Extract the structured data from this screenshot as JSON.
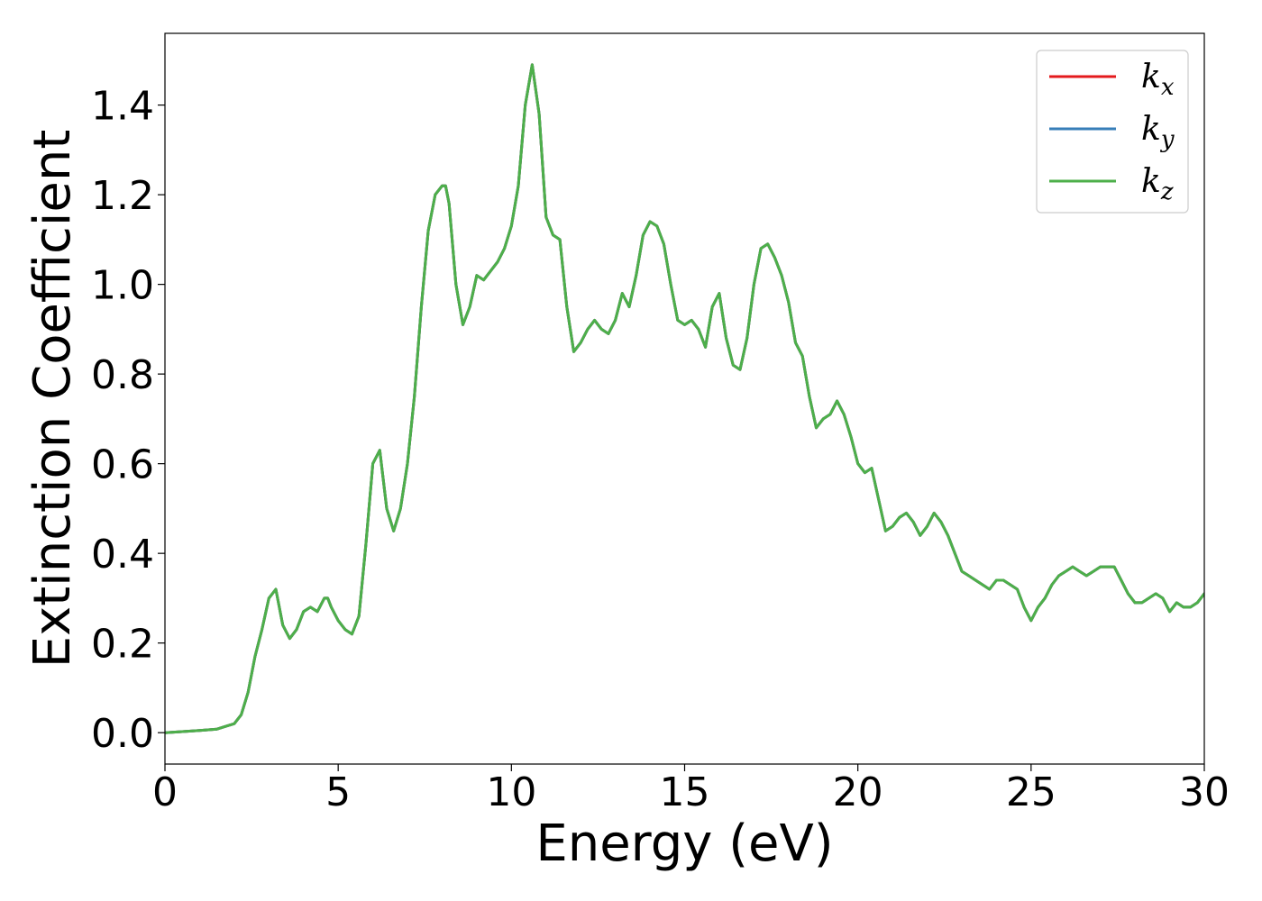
{
  "chart_data": {
    "type": "line",
    "title": "",
    "xlabel": "Energy (eV)",
    "ylabel": "Extinction Coefficient",
    "xlim": [
      0,
      30
    ],
    "ylim": [
      -0.07,
      1.56
    ],
    "xticks": [
      0,
      5,
      10,
      15,
      20,
      25,
      30
    ],
    "yticks": [
      0.0,
      0.2,
      0.4,
      0.6,
      0.8,
      1.0,
      1.2,
      1.4
    ],
    "grid": false,
    "legend_position": "top-right",
    "series": [
      {
        "name": "k_x",
        "label_base": "k",
        "label_sub": "x",
        "color": "#e41a1c",
        "x": [
          0,
          1,
          1.5,
          2,
          2.2,
          2.4,
          2.6,
          2.8,
          3.0,
          3.2,
          3.4,
          3.6,
          3.8,
          4.0,
          4.2,
          4.4,
          4.6,
          4.7,
          4.8,
          5.0,
          5.2,
          5.4,
          5.6,
          5.8,
          6.0,
          6.2,
          6.4,
          6.6,
          6.8,
          7.0,
          7.2,
          7.4,
          7.6,
          7.8,
          8.0,
          8.1,
          8.2,
          8.4,
          8.6,
          8.8,
          9.0,
          9.2,
          9.4,
          9.6,
          9.8,
          10.0,
          10.2,
          10.4,
          10.6,
          10.8,
          11.0,
          11.2,
          11.4,
          11.6,
          11.8,
          12.0,
          12.2,
          12.4,
          12.6,
          12.8,
          13.0,
          13.2,
          13.4,
          13.6,
          13.8,
          14.0,
          14.2,
          14.4,
          14.6,
          14.8,
          15.0,
          15.2,
          15.4,
          15.6,
          15.8,
          16.0,
          16.2,
          16.4,
          16.6,
          16.8,
          17.0,
          17.2,
          17.4,
          17.6,
          17.8,
          18.0,
          18.2,
          18.4,
          18.6,
          18.8,
          19.0,
          19.2,
          19.4,
          19.6,
          19.8,
          20.0,
          20.2,
          20.4,
          20.6,
          20.8,
          21.0,
          21.2,
          21.4,
          21.6,
          21.8,
          22.0,
          22.2,
          22.4,
          22.6,
          22.8,
          23.0,
          23.2,
          23.4,
          23.6,
          23.8,
          24.0,
          24.2,
          24.4,
          24.6,
          24.8,
          25.0,
          25.2,
          25.4,
          25.6,
          25.8,
          26.0,
          26.2,
          26.4,
          26.6,
          26.8,
          27.0,
          27.2,
          27.4,
          27.6,
          27.8,
          28.0,
          28.2,
          28.4,
          28.6,
          28.8,
          29.0,
          29.2,
          29.4,
          29.6,
          29.8,
          30.0
        ],
        "y": [
          0.0,
          0.005,
          0.008,
          0.02,
          0.04,
          0.09,
          0.17,
          0.23,
          0.3,
          0.32,
          0.24,
          0.21,
          0.23,
          0.27,
          0.28,
          0.27,
          0.3,
          0.3,
          0.28,
          0.25,
          0.23,
          0.22,
          0.26,
          0.42,
          0.6,
          0.63,
          0.5,
          0.45,
          0.5,
          0.6,
          0.75,
          0.95,
          1.12,
          1.2,
          1.22,
          1.22,
          1.18,
          1.0,
          0.91,
          0.95,
          1.02,
          1.01,
          1.03,
          1.05,
          1.08,
          1.13,
          1.22,
          1.4,
          1.49,
          1.38,
          1.15,
          1.11,
          1.1,
          0.95,
          0.85,
          0.87,
          0.9,
          0.92,
          0.9,
          0.89,
          0.92,
          0.98,
          0.95,
          1.02,
          1.11,
          1.14,
          1.13,
          1.09,
          1.0,
          0.92,
          0.91,
          0.92,
          0.9,
          0.86,
          0.95,
          0.98,
          0.88,
          0.82,
          0.81,
          0.88,
          1.0,
          1.08,
          1.09,
          1.06,
          1.02,
          0.96,
          0.87,
          0.84,
          0.75,
          0.68,
          0.7,
          0.71,
          0.74,
          0.71,
          0.66,
          0.6,
          0.58,
          0.59,
          0.52,
          0.45,
          0.46,
          0.48,
          0.49,
          0.47,
          0.44,
          0.46,
          0.49,
          0.47,
          0.44,
          0.4,
          0.36,
          0.35,
          0.34,
          0.33,
          0.32,
          0.34,
          0.34,
          0.33,
          0.32,
          0.28,
          0.25,
          0.28,
          0.3,
          0.33,
          0.35,
          0.36,
          0.37,
          0.36,
          0.35,
          0.36,
          0.37,
          0.37,
          0.37,
          0.34,
          0.31,
          0.29,
          0.29,
          0.3,
          0.31,
          0.3,
          0.27,
          0.29,
          0.28,
          0.28,
          0.29,
          0.31
        ]
      },
      {
        "name": "k_y",
        "label_base": "k",
        "label_sub": "y",
        "color": "#377eb8",
        "x": [
          0,
          1,
          1.5,
          2,
          2.2,
          2.4,
          2.6,
          2.8,
          3.0,
          3.2,
          3.4,
          3.6,
          3.8,
          4.0,
          4.2,
          4.4,
          4.6,
          4.7,
          4.8,
          5.0,
          5.2,
          5.4,
          5.6,
          5.8,
          6.0,
          6.2,
          6.4,
          6.6,
          6.8,
          7.0,
          7.2,
          7.4,
          7.6,
          7.8,
          8.0,
          8.1,
          8.2,
          8.4,
          8.6,
          8.8,
          9.0,
          9.2,
          9.4,
          9.6,
          9.8,
          10.0,
          10.2,
          10.4,
          10.6,
          10.8,
          11.0,
          11.2,
          11.4,
          11.6,
          11.8,
          12.0,
          12.2,
          12.4,
          12.6,
          12.8,
          13.0,
          13.2,
          13.4,
          13.6,
          13.8,
          14.0,
          14.2,
          14.4,
          14.6,
          14.8,
          15.0,
          15.2,
          15.4,
          15.6,
          15.8,
          16.0,
          16.2,
          16.4,
          16.6,
          16.8,
          17.0,
          17.2,
          17.4,
          17.6,
          17.8,
          18.0,
          18.2,
          18.4,
          18.6,
          18.8,
          19.0,
          19.2,
          19.4,
          19.6,
          19.8,
          20.0,
          20.2,
          20.4,
          20.6,
          20.8,
          21.0,
          21.2,
          21.4,
          21.6,
          21.8,
          22.0,
          22.2,
          22.4,
          22.6,
          22.8,
          23.0,
          23.2,
          23.4,
          23.6,
          23.8,
          24.0,
          24.2,
          24.4,
          24.6,
          24.8,
          25.0,
          25.2,
          25.4,
          25.6,
          25.8,
          26.0,
          26.2,
          26.4,
          26.6,
          26.8,
          27.0,
          27.2,
          27.4,
          27.6,
          27.8,
          28.0,
          28.2,
          28.4,
          28.6,
          28.8,
          29.0,
          29.2,
          29.4,
          29.6,
          29.8,
          30.0
        ],
        "y": [
          0.0,
          0.005,
          0.008,
          0.02,
          0.04,
          0.09,
          0.17,
          0.23,
          0.3,
          0.32,
          0.24,
          0.21,
          0.23,
          0.27,
          0.28,
          0.27,
          0.3,
          0.3,
          0.28,
          0.25,
          0.23,
          0.22,
          0.26,
          0.42,
          0.6,
          0.63,
          0.5,
          0.45,
          0.5,
          0.6,
          0.75,
          0.95,
          1.12,
          1.2,
          1.22,
          1.22,
          1.18,
          1.0,
          0.91,
          0.95,
          1.02,
          1.01,
          1.03,
          1.05,
          1.08,
          1.13,
          1.22,
          1.4,
          1.49,
          1.38,
          1.15,
          1.11,
          1.1,
          0.95,
          0.85,
          0.87,
          0.9,
          0.92,
          0.9,
          0.89,
          0.92,
          0.98,
          0.95,
          1.02,
          1.11,
          1.14,
          1.13,
          1.09,
          1.0,
          0.92,
          0.91,
          0.92,
          0.9,
          0.86,
          0.95,
          0.98,
          0.88,
          0.82,
          0.81,
          0.88,
          1.0,
          1.08,
          1.09,
          1.06,
          1.02,
          0.96,
          0.87,
          0.84,
          0.75,
          0.68,
          0.7,
          0.71,
          0.74,
          0.71,
          0.66,
          0.6,
          0.58,
          0.59,
          0.52,
          0.45,
          0.46,
          0.48,
          0.49,
          0.47,
          0.44,
          0.46,
          0.49,
          0.47,
          0.44,
          0.4,
          0.36,
          0.35,
          0.34,
          0.33,
          0.32,
          0.34,
          0.34,
          0.33,
          0.32,
          0.28,
          0.25,
          0.28,
          0.3,
          0.33,
          0.35,
          0.36,
          0.37,
          0.36,
          0.35,
          0.36,
          0.37,
          0.37,
          0.37,
          0.34,
          0.31,
          0.29,
          0.29,
          0.3,
          0.31,
          0.3,
          0.27,
          0.29,
          0.28,
          0.28,
          0.29,
          0.31
        ]
      },
      {
        "name": "k_z",
        "label_base": "k",
        "label_sub": "z",
        "color": "#4daf4a",
        "x": [
          0,
          1,
          1.5,
          2,
          2.2,
          2.4,
          2.6,
          2.8,
          3.0,
          3.2,
          3.4,
          3.6,
          3.8,
          4.0,
          4.2,
          4.4,
          4.6,
          4.7,
          4.8,
          5.0,
          5.2,
          5.4,
          5.6,
          5.8,
          6.0,
          6.2,
          6.4,
          6.6,
          6.8,
          7.0,
          7.2,
          7.4,
          7.6,
          7.8,
          8.0,
          8.1,
          8.2,
          8.4,
          8.6,
          8.8,
          9.0,
          9.2,
          9.4,
          9.6,
          9.8,
          10.0,
          10.2,
          10.4,
          10.6,
          10.8,
          11.0,
          11.2,
          11.4,
          11.6,
          11.8,
          12.0,
          12.2,
          12.4,
          12.6,
          12.8,
          13.0,
          13.2,
          13.4,
          13.6,
          13.8,
          14.0,
          14.2,
          14.4,
          14.6,
          14.8,
          15.0,
          15.2,
          15.4,
          15.6,
          15.8,
          16.0,
          16.2,
          16.4,
          16.6,
          16.8,
          17.0,
          17.2,
          17.4,
          17.6,
          17.8,
          18.0,
          18.2,
          18.4,
          18.6,
          18.8,
          19.0,
          19.2,
          19.4,
          19.6,
          19.8,
          20.0,
          20.2,
          20.4,
          20.6,
          20.8,
          21.0,
          21.2,
          21.4,
          21.6,
          21.8,
          22.0,
          22.2,
          22.4,
          22.6,
          22.8,
          23.0,
          23.2,
          23.4,
          23.6,
          23.8,
          24.0,
          24.2,
          24.4,
          24.6,
          24.8,
          25.0,
          25.2,
          25.4,
          25.6,
          25.8,
          26.0,
          26.2,
          26.4,
          26.6,
          26.8,
          27.0,
          27.2,
          27.4,
          27.6,
          27.8,
          28.0,
          28.2,
          28.4,
          28.6,
          28.8,
          29.0,
          29.2,
          29.4,
          29.6,
          29.8,
          30.0
        ],
        "y": [
          0.0,
          0.005,
          0.008,
          0.02,
          0.04,
          0.09,
          0.17,
          0.23,
          0.3,
          0.32,
          0.24,
          0.21,
          0.23,
          0.27,
          0.28,
          0.27,
          0.3,
          0.3,
          0.28,
          0.25,
          0.23,
          0.22,
          0.26,
          0.42,
          0.6,
          0.63,
          0.5,
          0.45,
          0.5,
          0.6,
          0.75,
          0.95,
          1.12,
          1.2,
          1.22,
          1.22,
          1.18,
          1.0,
          0.91,
          0.95,
          1.02,
          1.01,
          1.03,
          1.05,
          1.08,
          1.13,
          1.22,
          1.4,
          1.49,
          1.38,
          1.15,
          1.11,
          1.1,
          0.95,
          0.85,
          0.87,
          0.9,
          0.92,
          0.9,
          0.89,
          0.92,
          0.98,
          0.95,
          1.02,
          1.11,
          1.14,
          1.13,
          1.09,
          1.0,
          0.92,
          0.91,
          0.92,
          0.9,
          0.86,
          0.95,
          0.98,
          0.88,
          0.82,
          0.81,
          0.88,
          1.0,
          1.08,
          1.09,
          1.06,
          1.02,
          0.96,
          0.87,
          0.84,
          0.75,
          0.68,
          0.7,
          0.71,
          0.74,
          0.71,
          0.66,
          0.6,
          0.58,
          0.59,
          0.52,
          0.45,
          0.46,
          0.48,
          0.49,
          0.47,
          0.44,
          0.46,
          0.49,
          0.47,
          0.44,
          0.4,
          0.36,
          0.35,
          0.34,
          0.33,
          0.32,
          0.34,
          0.34,
          0.33,
          0.32,
          0.28,
          0.25,
          0.28,
          0.3,
          0.33,
          0.35,
          0.36,
          0.37,
          0.36,
          0.35,
          0.36,
          0.37,
          0.37,
          0.37,
          0.34,
          0.31,
          0.29,
          0.29,
          0.3,
          0.31,
          0.3,
          0.27,
          0.29,
          0.28,
          0.28,
          0.29,
          0.31
        ]
      }
    ]
  }
}
